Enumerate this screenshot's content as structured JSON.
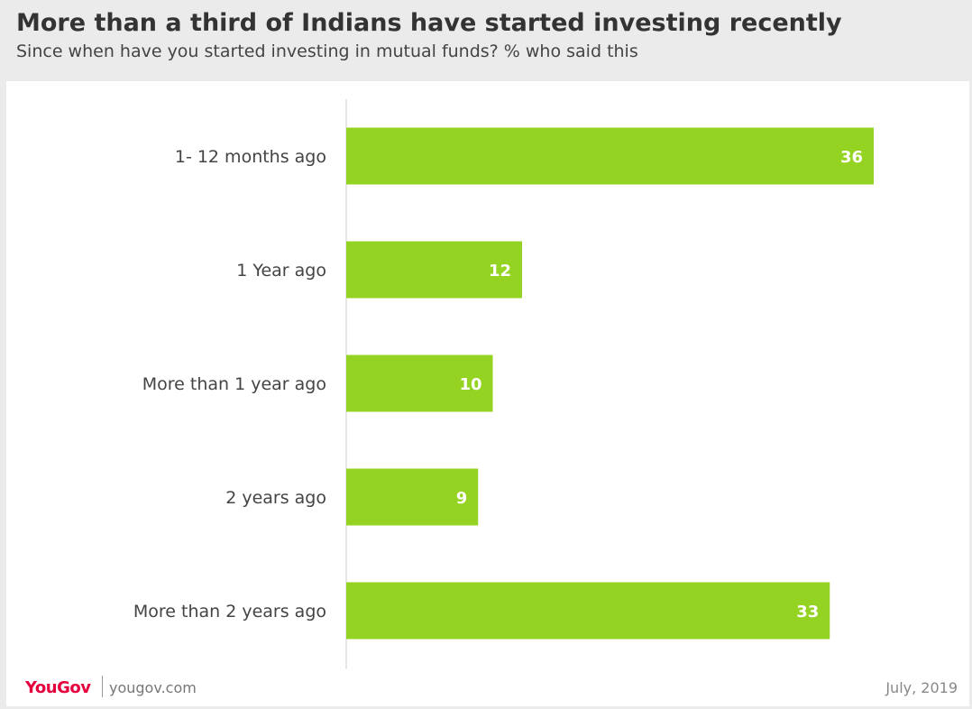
{
  "header": {
    "title": "More than a third of Indians have started investing recently",
    "subtitle": "Since when have you started investing in mutual funds? % who said this"
  },
  "footer": {
    "brand": "YouGov",
    "url": "yougov.com",
    "date": "July, 2019"
  },
  "colors": {
    "bar": "#94d322",
    "axis": "#cccccc",
    "brand": "#e5003e"
  },
  "chart_data": {
    "type": "bar",
    "orientation": "horizontal",
    "title": "More than a third of Indians have started investing recently",
    "subtitle": "Since when have you started investing in mutual funds? % who said this",
    "categories": [
      "1- 12 months ago",
      "1 Year ago",
      "More than 1 year ago",
      "2 years ago",
      "More than 2 years ago"
    ],
    "values": [
      36,
      12,
      10,
      9,
      33
    ],
    "xlim": [
      0,
      40
    ],
    "grid": false,
    "data_labels": true
  }
}
